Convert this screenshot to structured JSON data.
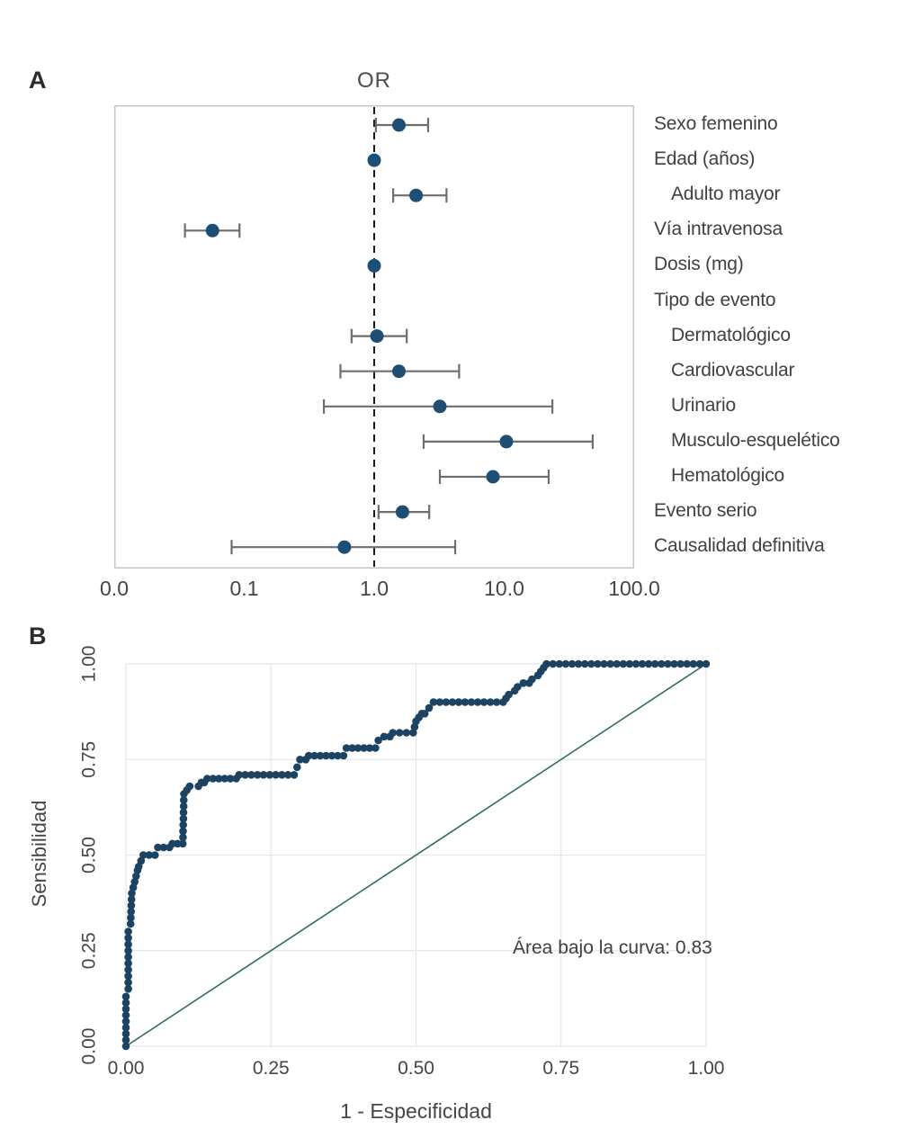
{
  "chart_data": [
    {
      "type": "scatter",
      "subtype": "forest-plot",
      "panel_label": "A",
      "title": "OR",
      "x_scale": "log",
      "x_ticks": [
        0.01,
        0.1,
        1,
        10,
        100
      ],
      "x_tick_labels": [
        "0.0",
        "0.1",
        "1.0",
        "10.0",
        "100.0"
      ],
      "reference_line": 1,
      "point_color": "#1f4e74",
      "ci_color": "#6e6e6e",
      "rows": [
        {
          "label": "Sexo femenino",
          "indent": 0,
          "or": 1.55,
          "lo": 1.03,
          "hi": 2.6
        },
        {
          "label": "Edad (años)",
          "indent": 0,
          "or": 1.0,
          "lo": null,
          "hi": null
        },
        {
          "label": "Adulto mayor",
          "indent": 1,
          "or": 2.1,
          "lo": 1.4,
          "hi": 3.6
        },
        {
          "label": "Vía intravenosa",
          "indent": 0,
          "or": 0.057,
          "lo": 0.035,
          "hi": 0.092
        },
        {
          "label": "Dosis (mg)",
          "indent": 0,
          "or": 1.0,
          "lo": null,
          "hi": null
        },
        {
          "label": "Tipo de evento",
          "indent": 0,
          "or": null,
          "lo": null,
          "hi": null
        },
        {
          "label": "Dermatológico",
          "indent": 1,
          "or": 1.05,
          "lo": 0.67,
          "hi": 1.78
        },
        {
          "label": "Cardiovascular",
          "indent": 1,
          "or": 1.55,
          "lo": 0.55,
          "hi": 4.5
        },
        {
          "label": "Urinario",
          "indent": 1,
          "or": 3.2,
          "lo": 0.41,
          "hi": 23.5
        },
        {
          "label": "Musculo-esquelético",
          "indent": 1,
          "or": 10.4,
          "lo": 2.4,
          "hi": 48.0
        },
        {
          "label": "Hematológico",
          "indent": 1,
          "or": 8.2,
          "lo": 3.2,
          "hi": 22.0
        },
        {
          "label": "Evento serio",
          "indent": 0,
          "or": 1.65,
          "lo": 1.08,
          "hi": 2.65
        },
        {
          "label": "Causalidad definitiva",
          "indent": 0,
          "or": 0.59,
          "lo": 0.08,
          "hi": 4.2
        }
      ]
    },
    {
      "type": "line",
      "subtype": "roc-curve",
      "panel_label": "B",
      "xlabel": "1 - Especificidad",
      "ylabel": "Sensibilidad",
      "xlim": [
        0,
        1
      ],
      "ylim": [
        0,
        1
      ],
      "grid": true,
      "x_ticks": [
        0,
        0.25,
        0.5,
        0.75,
        1
      ],
      "y_ticks": [
        0,
        0.25,
        0.5,
        0.75,
        1
      ],
      "x_tick_labels": [
        "0.00",
        "0.25",
        "0.50",
        "0.75",
        "1.00"
      ],
      "y_tick_labels": [
        "0.00",
        "0.25",
        "0.50",
        "0.75",
        "1.00"
      ],
      "annotation": "Área bajo la curva: 0.83",
      "auc": 0.83,
      "curve_color": "#1c4462",
      "diagonal_color": "#2e6e60",
      "diagonal": [
        [
          0,
          0
        ],
        [
          1,
          1
        ]
      ],
      "curve_points": [
        [
          0.0,
          0.0
        ],
        [
          0.0,
          0.13
        ],
        [
          0.004,
          0.15
        ],
        [
          0.004,
          0.3
        ],
        [
          0.008,
          0.32
        ],
        [
          0.01,
          0.4
        ],
        [
          0.015,
          0.43
        ],
        [
          0.02,
          0.46
        ],
        [
          0.022,
          0.47
        ],
        [
          0.03,
          0.5
        ],
        [
          0.05,
          0.5
        ],
        [
          0.055,
          0.52
        ],
        [
          0.075,
          0.52
        ],
        [
          0.08,
          0.53
        ],
        [
          0.098,
          0.53
        ],
        [
          0.1,
          0.66
        ],
        [
          0.105,
          0.67
        ],
        [
          0.11,
          0.68
        ],
        [
          0.125,
          0.68
        ],
        [
          0.13,
          0.69
        ],
        [
          0.135,
          0.69
        ],
        [
          0.14,
          0.7
        ],
        [
          0.19,
          0.7
        ],
        [
          0.195,
          0.71
        ],
        [
          0.29,
          0.71
        ],
        [
          0.295,
          0.73
        ],
        [
          0.3,
          0.75
        ],
        [
          0.31,
          0.75
        ],
        [
          0.315,
          0.76
        ],
        [
          0.375,
          0.76
        ],
        [
          0.38,
          0.78
        ],
        [
          0.43,
          0.78
        ],
        [
          0.435,
          0.8
        ],
        [
          0.445,
          0.81
        ],
        [
          0.455,
          0.81
        ],
        [
          0.46,
          0.82
        ],
        [
          0.495,
          0.82
        ],
        [
          0.5,
          0.85
        ],
        [
          0.505,
          0.86
        ],
        [
          0.51,
          0.87
        ],
        [
          0.515,
          0.87
        ],
        [
          0.53,
          0.9
        ],
        [
          0.65,
          0.9
        ],
        [
          0.655,
          0.91
        ],
        [
          0.66,
          0.92
        ],
        [
          0.67,
          0.93
        ],
        [
          0.675,
          0.94
        ],
        [
          0.685,
          0.95
        ],
        [
          0.695,
          0.95
        ],
        [
          0.7,
          0.96
        ],
        [
          0.71,
          0.97
        ],
        [
          0.715,
          0.98
        ],
        [
          0.72,
          0.99
        ],
        [
          0.725,
          1.0
        ],
        [
          1.0,
          1.0
        ]
      ]
    }
  ]
}
